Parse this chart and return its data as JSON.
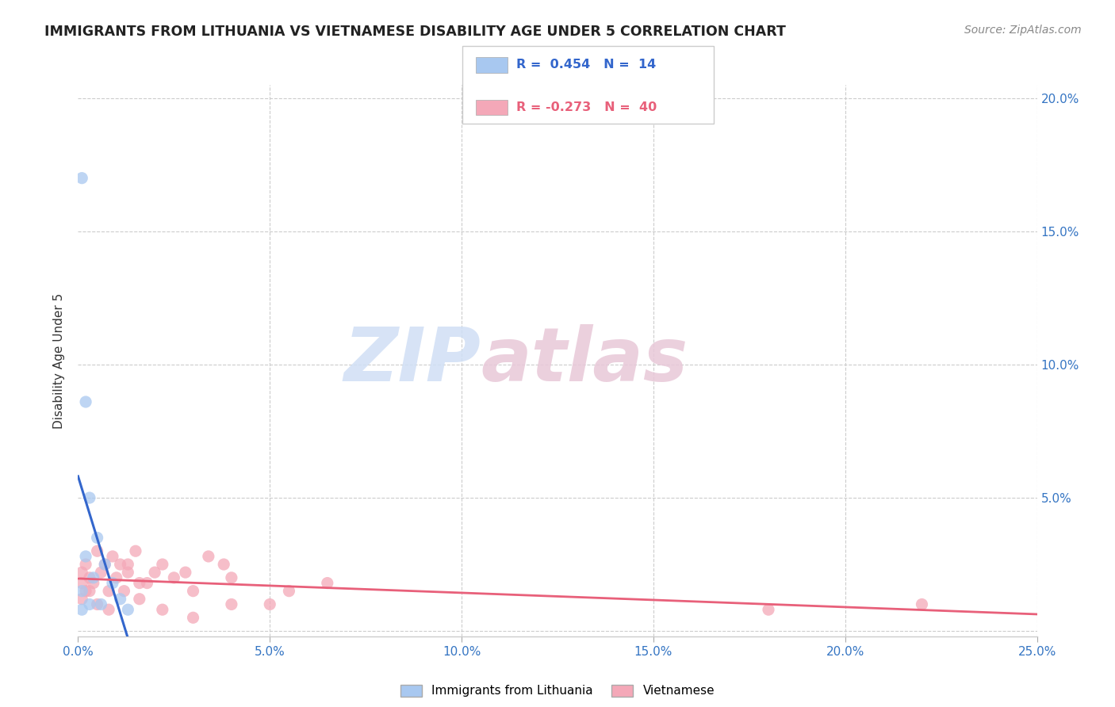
{
  "title": "IMMIGRANTS FROM LITHUANIA VS VIETNAMESE DISABILITY AGE UNDER 5 CORRELATION CHART",
  "source": "Source: ZipAtlas.com",
  "ylabel": "Disability Age Under 5",
  "xlim": [
    0.0,
    0.25
  ],
  "ylim": [
    -0.002,
    0.205
  ],
  "xticks": [
    0.0,
    0.05,
    0.1,
    0.15,
    0.2,
    0.25
  ],
  "xticklabels": [
    "0.0%",
    "5.0%",
    "10.0%",
    "15.0%",
    "20.0%",
    "25.0%"
  ],
  "yticks_right": [
    0.05,
    0.1,
    0.15,
    0.2
  ],
  "yticklabels_right": [
    "5.0%",
    "10.0%",
    "15.0%",
    "20.0%"
  ],
  "blue_color": "#a8c8f0",
  "blue_line_color": "#3366cc",
  "blue_dashed_color": "#aac4e8",
  "pink_color": "#f4a8b8",
  "pink_line_color": "#e8607a",
  "scatter_alpha": 0.75,
  "scatter_size": 120,
  "watermark_zip": "ZIP",
  "watermark_atlas": "atlas",
  "lith_x": [
    0.001,
    0.002,
    0.003,
    0.005,
    0.007,
    0.009,
    0.011,
    0.013,
    0.002,
    0.004,
    0.001,
    0.003,
    0.006,
    0.001
  ],
  "lith_y": [
    0.17,
    0.086,
    0.05,
    0.035,
    0.025,
    0.018,
    0.012,
    0.008,
    0.028,
    0.02,
    0.015,
    0.01,
    0.01,
    0.008
  ],
  "viet_x": [
    0.001,
    0.002,
    0.003,
    0.005,
    0.007,
    0.009,
    0.011,
    0.013,
    0.015,
    0.018,
    0.022,
    0.028,
    0.034,
    0.04,
    0.001,
    0.002,
    0.004,
    0.006,
    0.008,
    0.01,
    0.013,
    0.016,
    0.02,
    0.025,
    0.03,
    0.038,
    0.05,
    0.065,
    0.001,
    0.003,
    0.005,
    0.008,
    0.012,
    0.016,
    0.022,
    0.03,
    0.04,
    0.055,
    0.18,
    0.22
  ],
  "viet_y": [
    0.022,
    0.025,
    0.02,
    0.03,
    0.025,
    0.028,
    0.025,
    0.022,
    0.03,
    0.018,
    0.025,
    0.022,
    0.028,
    0.02,
    0.018,
    0.015,
    0.018,
    0.022,
    0.015,
    0.02,
    0.025,
    0.018,
    0.022,
    0.02,
    0.015,
    0.025,
    0.01,
    0.018,
    0.012,
    0.015,
    0.01,
    0.008,
    0.015,
    0.012,
    0.008,
    0.005,
    0.01,
    0.015,
    0.008,
    0.01
  ],
  "legend_r1": "0.454",
  "legend_n1": "14",
  "legend_r2": "-0.273",
  "legend_n2": "40"
}
